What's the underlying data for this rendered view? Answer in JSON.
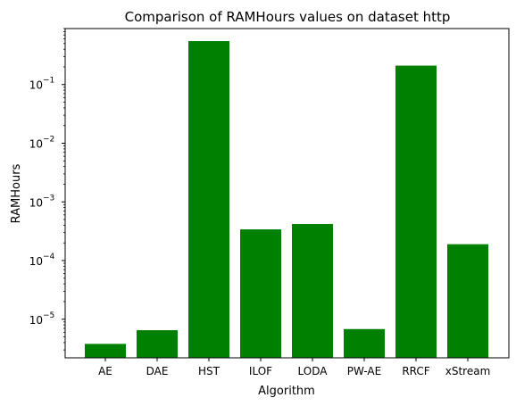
{
  "chart_data": {
    "type": "bar",
    "title": "Comparison of RAMHours values on dataset http",
    "xlabel": "Algorithm",
    "ylabel": "RAMHours",
    "yscale": "log",
    "ylim": [
      2.2e-06,
      0.9
    ],
    "categories": [
      "AE",
      "DAE",
      "HST",
      "ILOF",
      "LODA",
      "PW-AE",
      "RRCF",
      "xStream"
    ],
    "values": [
      3.8e-06,
      6.5e-06,
      0.55,
      0.00034,
      0.00042,
      6.8e-06,
      0.21,
      0.00019
    ],
    "yticks": [
      {
        "exp": -5,
        "base": "10",
        "sup": "−5"
      },
      {
        "exp": -4,
        "base": "10",
        "sup": "−4"
      },
      {
        "exp": -3,
        "base": "10",
        "sup": "−3"
      },
      {
        "exp": -2,
        "base": "10",
        "sup": "−2"
      },
      {
        "exp": -1,
        "base": "10",
        "sup": "−1"
      }
    ],
    "bar_color": "#008000",
    "grid": false,
    "legend": "none"
  }
}
